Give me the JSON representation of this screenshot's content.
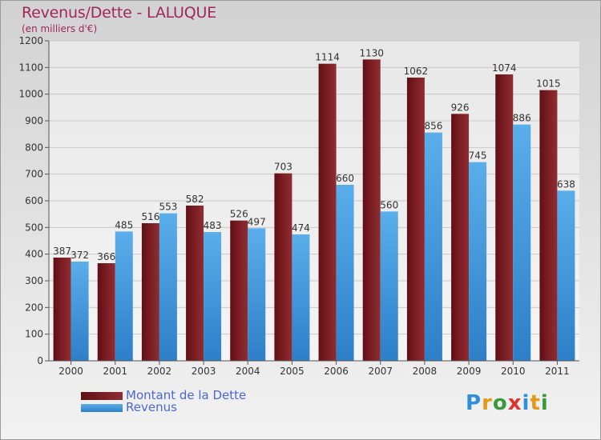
{
  "header": {
    "title": "Revenus/Dette - LALUQUE",
    "subtitle": "(en milliers d'€)"
  },
  "colors": {
    "dette": "#7a1c22",
    "revenus": "#4a9fe0",
    "title": "#a1265c",
    "legend_text": "#4a68d8"
  },
  "chart_data": {
    "type": "bar",
    "categories": [
      "2000",
      "2001",
      "2002",
      "2003",
      "2004",
      "2005",
      "2006",
      "2007",
      "2008",
      "2009",
      "2010",
      "2011"
    ],
    "series": [
      {
        "name": "Montant de la Dette",
        "values": [
          387,
          366,
          516,
          582,
          526,
          703,
          1114,
          1130,
          1062,
          926,
          1074,
          1015
        ]
      },
      {
        "name": "Revenus",
        "values": [
          372,
          485,
          553,
          483,
          497,
          474,
          660,
          560,
          856,
          745,
          886,
          638
        ]
      }
    ],
    "ylim": [
      0,
      1200
    ],
    "yticks": [
      0,
      100,
      200,
      300,
      400,
      500,
      600,
      700,
      800,
      900,
      1000,
      1100,
      1200
    ],
    "grid": true,
    "legend_position": "bottom-left"
  },
  "legend": {
    "items": [
      {
        "label": "Montant de la Dette"
      },
      {
        "label": "Revenus"
      }
    ]
  },
  "logo": {
    "letters": [
      "P",
      "r",
      "o",
      "x",
      "i",
      "t",
      "i"
    ],
    "colors": [
      "#2f8fd8",
      "#e39a1a",
      "#3a9a3a",
      "#e0332e",
      "#2f8fd8",
      "#e39a1a",
      "#3a9a3a"
    ]
  }
}
